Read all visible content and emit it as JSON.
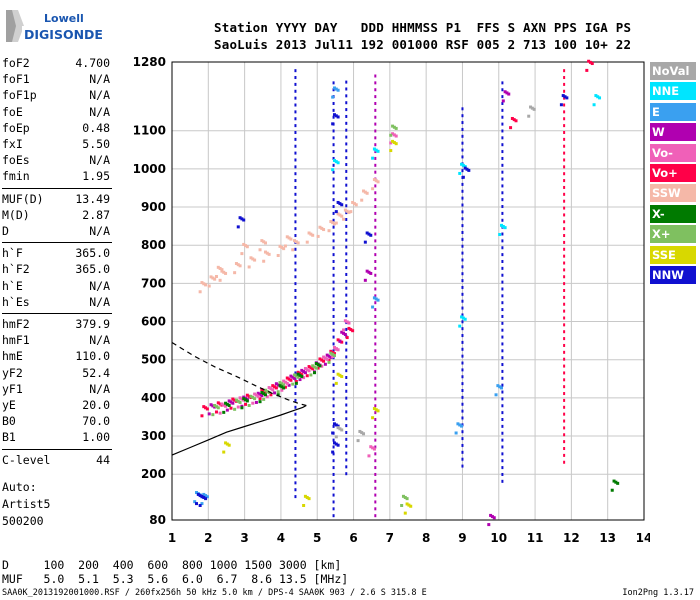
{
  "logo": {
    "line1": "Lowell",
    "line2": "DIGISONDE",
    "color": "#1a56b0"
  },
  "header": {
    "labels": "Station YYYY DAY   DDD HHMMSS P1  FFS S AXN PPS IGA PS",
    "values": "SaoLuis 2013 Jul11 192 001000 RSF 005 2 713 100 10+ 22"
  },
  "params_group1": [
    {
      "name": "foF2",
      "value": "4.700"
    },
    {
      "name": "foF1",
      "value": "N/A"
    },
    {
      "name": "foF1p",
      "value": "N/A"
    },
    {
      "name": "foE",
      "value": "N/A"
    },
    {
      "name": "foEp",
      "value": "0.48"
    },
    {
      "name": "fxI",
      "value": "5.50"
    },
    {
      "name": "foEs",
      "value": "N/A"
    },
    {
      "name": "fmin",
      "value": "1.95"
    }
  ],
  "params_group2": [
    {
      "name": "MUF(D)",
      "value": "13.49"
    },
    {
      "name": "M(D)",
      "value": "2.87"
    },
    {
      "name": "D",
      "value": "N/A"
    }
  ],
  "params_group3": [
    {
      "name": "h`F",
      "value": "365.0"
    },
    {
      "name": "h`F2",
      "value": "365.0"
    },
    {
      "name": "h`E",
      "value": "N/A"
    },
    {
      "name": "h`Es",
      "value": "N/A"
    }
  ],
  "params_group4": [
    {
      "name": "hmF2",
      "value": "379.9"
    },
    {
      "name": "hmF1",
      "value": "N/A"
    },
    {
      "name": "hmE",
      "value": "110.0"
    },
    {
      "name": "yF2",
      "value": "52.4"
    },
    {
      "name": "yF1",
      "value": "N/A"
    },
    {
      "name": "yE",
      "value": "20.0"
    },
    {
      "name": "B0",
      "value": "70.0"
    },
    {
      "name": "B1",
      "value": "1.00"
    }
  ],
  "params_group5": [
    {
      "name": "C-level",
      "value": "44"
    }
  ],
  "autoscaling": {
    "line1": "Auto:",
    "line2": "Artist5",
    "line3": "500200"
  },
  "legend": [
    {
      "label": "NoVal",
      "color": "#a8a8a8"
    },
    {
      "label": "NNE",
      "color": "#00e5ff"
    },
    {
      "label": "E",
      "color": "#3aa0f0"
    },
    {
      "label": "W",
      "color": "#b000b0"
    },
    {
      "label": "Vo-",
      "color": "#f060b8"
    },
    {
      "label": "Vo+",
      "color": "#ff0048"
    },
    {
      "label": "SSW",
      "color": "#f5b8a8"
    },
    {
      "label": "X-",
      "color": "#007a00"
    },
    {
      "label": "X+",
      "color": "#7fc060"
    },
    {
      "label": "SSE",
      "color": "#d8d800"
    },
    {
      "label": "NNW",
      "color": "#1010d0"
    }
  ],
  "dmuf": {
    "d_line": "D     100  200  400  600  800 1000 1500 3000 [km]",
    "muf_line": "MUF   5.0  5.1  5.3  5.6  6.0  6.7  8.6 13.5 [MHz]"
  },
  "footer": {
    "text": "SAA0K_2013192001000.RSF / 260fx256h 50 kHz 5.0 km / DPS-4 SAA0K 903 / 2.6 S 315.8 E",
    "version": "Ion2Png 1.3.17"
  },
  "chart_data": {
    "type": "scatter",
    "xlim": [
      1,
      14
    ],
    "ylim": [
      80,
      1280
    ],
    "x_ticks": [
      1,
      2,
      3,
      4,
      5,
      6,
      7,
      8,
      9,
      10,
      11,
      12,
      13,
      14
    ],
    "y_ticks": [
      80,
      200,
      300,
      400,
      500,
      600,
      700,
      800,
      900,
      1000,
      1100,
      1280
    ],
    "grid": true,
    "series": [
      {
        "name": "SSW",
        "color": "#f5b8a8",
        "points": [
          [
            1.85,
            690
          ],
          [
            2.1,
            705
          ],
          [
            2.4,
            720
          ],
          [
            2.8,
            740
          ],
          [
            3.2,
            755
          ],
          [
            3.6,
            770
          ],
          [
            4.0,
            785
          ],
          [
            4.4,
            800
          ],
          [
            4.8,
            820
          ],
          [
            5.1,
            835
          ],
          [
            5.4,
            850
          ],
          [
            5.6,
            870
          ],
          [
            5.8,
            880
          ],
          [
            6.0,
            900
          ],
          [
            6.3,
            930
          ],
          [
            6.6,
            960
          ],
          [
            2.3,
            730
          ],
          [
            3.5,
            800
          ],
          [
            3.0,
            790
          ],
          [
            4.2,
            810
          ]
        ]
      },
      {
        "name": "Vo+",
        "color": "#ff0048",
        "points": [
          [
            1.9,
            365
          ],
          [
            2.3,
            375
          ],
          [
            2.7,
            385
          ],
          [
            3.1,
            395
          ],
          [
            3.5,
            410
          ],
          [
            3.8,
            420
          ],
          [
            4.2,
            440
          ],
          [
            4.5,
            455
          ],
          [
            4.8,
            470
          ],
          [
            5.1,
            490
          ],
          [
            5.4,
            510
          ],
          [
            5.6,
            540
          ],
          [
            5.9,
            570
          ],
          [
            12.5,
            1270
          ],
          [
            10.4,
            1120
          ]
        ]
      },
      {
        "name": "W",
        "color": "#b000b0",
        "points": [
          [
            2.1,
            370
          ],
          [
            2.6,
            380
          ],
          [
            3.0,
            390
          ],
          [
            3.4,
            400
          ],
          [
            3.9,
            425
          ],
          [
            4.3,
            445
          ],
          [
            4.6,
            460
          ],
          [
            5.0,
            480
          ],
          [
            5.3,
            500
          ],
          [
            5.7,
            560
          ],
          [
            6.4,
            720
          ],
          [
            9.8,
            80
          ],
          [
            10.2,
            1190
          ]
        ]
      },
      {
        "name": "Vo-",
        "color": "#f060b8",
        "points": [
          [
            2.4,
            372
          ],
          [
            2.9,
            388
          ],
          [
            3.3,
            398
          ],
          [
            3.7,
            415
          ],
          [
            4.1,
            432
          ],
          [
            4.7,
            465
          ],
          [
            5.2,
            495
          ],
          [
            5.5,
            520
          ],
          [
            5.8,
            590
          ],
          [
            6.5,
            260
          ],
          [
            7.1,
            1080
          ]
        ]
      },
      {
        "name": "X+",
        "color": "#7fc060",
        "points": [
          [
            2.2,
            368
          ],
          [
            2.8,
            382
          ],
          [
            3.2,
            392
          ],
          [
            3.6,
            408
          ],
          [
            4.0,
            428
          ],
          [
            4.4,
            448
          ],
          [
            4.9,
            472
          ],
          [
            5.4,
            505
          ],
          [
            7.1,
            1100
          ],
          [
            7.4,
            130
          ]
        ]
      },
      {
        "name": "X-",
        "color": "#007a00",
        "points": [
          [
            2.5,
            374
          ],
          [
            3.0,
            386
          ],
          [
            3.5,
            402
          ],
          [
            4.0,
            420
          ],
          [
            4.5,
            450
          ],
          [
            5.0,
            478
          ],
          [
            13.2,
            170
          ]
        ]
      },
      {
        "name": "SSE",
        "color": "#d8d800",
        "points": [
          [
            5.6,
            450
          ],
          [
            6.6,
            360
          ],
          [
            7.1,
            1060
          ],
          [
            2.5,
            270
          ],
          [
            4.7,
            130
          ],
          [
            7.5,
            110
          ]
        ]
      },
      {
        "name": "NNE",
        "color": "#00e5ff",
        "points": [
          [
            5.5,
            1010
          ],
          [
            6.6,
            1040
          ],
          [
            9.0,
            600
          ],
          [
            10.1,
            840
          ],
          [
            12.7,
            1180
          ],
          [
            9.0,
            1000
          ]
        ]
      },
      {
        "name": "E",
        "color": "#3aa0f0",
        "points": [
          [
            1.7,
            140
          ],
          [
            1.9,
            135
          ],
          [
            5.5,
            1200
          ],
          [
            6.6,
            650
          ],
          [
            10.0,
            420
          ],
          [
            8.9,
            320
          ]
        ]
      },
      {
        "name": "NNW",
        "color": "#1010d0",
        "points": [
          [
            1.75,
            135
          ],
          [
            1.85,
            130
          ],
          [
            5.5,
            1130
          ],
          [
            5.6,
            900
          ],
          [
            6.4,
            820
          ],
          [
            5.5,
            320
          ],
          [
            5.5,
            270
          ],
          [
            9.1,
            990
          ],
          [
            11.8,
            1180
          ],
          [
            2.9,
            860
          ]
        ]
      },
      {
        "name": "NoVal",
        "color": "#a8a8a8",
        "points": [
          [
            5.6,
            310
          ],
          [
            6.2,
            300
          ],
          [
            10.9,
            1150
          ]
        ]
      }
    ],
    "profile": {
      "solid": [
        [
          1.0,
          250
        ],
        [
          1.5,
          270
        ],
        [
          2.0,
          290
        ],
        [
          2.5,
          310
        ],
        [
          3.0,
          325
        ],
        [
          3.5,
          340
        ],
        [
          4.0,
          355
        ],
        [
          4.3,
          365
        ],
        [
          4.6,
          375
        ],
        [
          4.7,
          380
        ]
      ],
      "dashed": [
        [
          1.0,
          545
        ],
        [
          1.6,
          510
        ],
        [
          2.2,
          480
        ],
        [
          2.8,
          455
        ],
        [
          3.3,
          432
        ],
        [
          3.8,
          410
        ],
        [
          4.2,
          395
        ],
        [
          4.5,
          385
        ],
        [
          4.7,
          380
        ]
      ]
    },
    "vertical_traces": [
      {
        "x": 4.4,
        "y": [
          140,
          1270
        ],
        "color": "#1010d0"
      },
      {
        "x": 5.45,
        "y": [
          90,
          1230
        ],
        "color": "#1010d0"
      },
      {
        "x": 5.8,
        "y": [
          200,
          1240
        ],
        "color": "#1010d0"
      },
      {
        "x": 6.6,
        "y": [
          90,
          1250
        ],
        "color": "#b000b0"
      },
      {
        "x": 9.0,
        "y": [
          220,
          1170
        ],
        "color": "#1010d0"
      },
      {
        "x": 10.1,
        "y": [
          180,
          1240
        ],
        "color": "#1010d0"
      },
      {
        "x": 11.8,
        "y": [
          230,
          1260
        ],
        "color": "#ff0048"
      }
    ]
  }
}
